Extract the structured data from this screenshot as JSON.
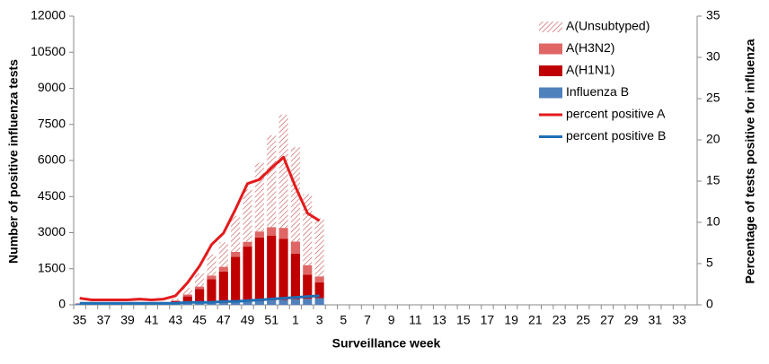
{
  "chart_data": {
    "type": "bar",
    "y_label": "Number of positive influenza tests",
    "y2_label": "Percentage of tests positive for influenza",
    "x_label": "Surveillance  week",
    "categories": [
      "35",
      null,
      "37",
      null,
      "39",
      null,
      "41",
      null,
      "43",
      null,
      "45",
      null,
      "47",
      null,
      "49",
      null,
      "51",
      null,
      "1",
      null,
      "3",
      null,
      "5",
      null,
      "7",
      null,
      "9",
      null,
      "11",
      null,
      "13",
      null,
      "15",
      null,
      "17",
      null,
      "19",
      null,
      "21",
      null,
      "23",
      null,
      "25",
      null,
      "27",
      null,
      "29",
      null,
      "31",
      null,
      "33",
      null
    ],
    "series": [
      {
        "name": "A(Unsubtyped)",
        "color": "#c0504d",
        "pattern": "hatch",
        "values": [
          20,
          20,
          20,
          20,
          20,
          20,
          20,
          40,
          70,
          270,
          540,
          880,
          1020,
          1500,
          2180,
          2850,
          3820,
          4700,
          3920,
          2950,
          2420,
          null,
          null,
          null,
          null,
          null,
          null,
          null,
          null,
          null,
          null,
          null,
          null,
          null,
          null,
          null,
          null,
          null,
          null,
          null,
          null,
          null,
          null,
          null,
          null,
          null,
          null,
          null,
          null,
          null,
          null,
          null
        ]
      },
      {
        "name": "A(H3N2)",
        "color": "#e06666",
        "values": [
          0,
          0,
          0,
          0,
          0,
          0,
          0,
          10,
          30,
          80,
          100,
          150,
          200,
          200,
          200,
          250,
          350,
          450,
          500,
          400,
          250,
          null,
          null,
          null,
          null,
          null,
          null,
          null,
          null,
          null,
          null,
          null,
          null,
          null,
          null,
          null,
          null,
          null,
          null,
          null,
          null,
          null,
          null,
          null,
          null,
          null,
          null,
          null,
          null,
          null,
          null,
          null
        ]
      },
      {
        "name": "A(H1N1)",
        "color": "#c00000",
        "values": [
          10,
          10,
          10,
          10,
          10,
          10,
          10,
          20,
          100,
          300,
          600,
          1000,
          1300,
          1900,
          2300,
          2650,
          2700,
          2550,
          1900,
          1000,
          650,
          null,
          null,
          null,
          null,
          null,
          null,
          null,
          null,
          null,
          null,
          null,
          null,
          null,
          null,
          null,
          null,
          null,
          null,
          null,
          null,
          null,
          null,
          null,
          null,
          null,
          null,
          null,
          null,
          null,
          null,
          null
        ]
      },
      {
        "name": "Influenza B",
        "color": "#4f81bd",
        "values": [
          50,
          50,
          50,
          50,
          50,
          50,
          50,
          50,
          50,
          50,
          60,
          70,
          80,
          100,
          120,
          150,
          180,
          200,
          230,
          250,
          280,
          null,
          null,
          null,
          null,
          null,
          null,
          null,
          null,
          null,
          null,
          null,
          null,
          null,
          null,
          null,
          null,
          null,
          null,
          null,
          null,
          null,
          null,
          null,
          null,
          null,
          null,
          null,
          null,
          null,
          null,
          null
        ]
      },
      {
        "name": "percent positive A",
        "color": "#e31a1c",
        "type": "line",
        "axis": "y2",
        "values": [
          0.8,
          0.6,
          0.6,
          0.6,
          0.6,
          0.7,
          0.6,
          0.7,
          1.1,
          2.7,
          4.7,
          7.3,
          8.7,
          11.6,
          14.7,
          15.2,
          16.6,
          17.9,
          14.3,
          11.1,
          10.2,
          null,
          null,
          null,
          null,
          null,
          null,
          null,
          null,
          null,
          null,
          null,
          null,
          null,
          null,
          null,
          null,
          null,
          null,
          null,
          null,
          null,
          null,
          null,
          null,
          null,
          null,
          null,
          null,
          null,
          null,
          null
        ]
      },
      {
        "name": "percent positive B",
        "color": "#1f6fb5",
        "type": "line",
        "axis": "y2",
        "values": [
          0.2,
          0.2,
          0.2,
          0.2,
          0.2,
          0.2,
          0.2,
          0.2,
          0.2,
          0.3,
          0.3,
          0.3,
          0.4,
          0.4,
          0.5,
          0.6,
          0.7,
          0.8,
          0.9,
          1,
          1.1,
          null,
          null,
          null,
          null,
          null,
          null,
          null,
          null,
          null,
          null,
          null,
          null,
          null,
          null,
          null,
          null,
          null,
          null,
          null,
          null,
          null,
          null,
          null,
          null,
          null,
          null,
          null,
          null,
          null,
          null,
          null
        ]
      }
    ],
    "stacked": true,
    "ylim": [
      0,
      12000
    ],
    "yticks": [
      0,
      1500,
      3000,
      4500,
      6000,
      7500,
      9000,
      10500,
      12000
    ],
    "y2lim": [
      0,
      35
    ],
    "y2ticks": [
      0,
      5,
      10,
      15,
      20,
      25,
      30,
      35
    ],
    "legend": "top-right"
  }
}
